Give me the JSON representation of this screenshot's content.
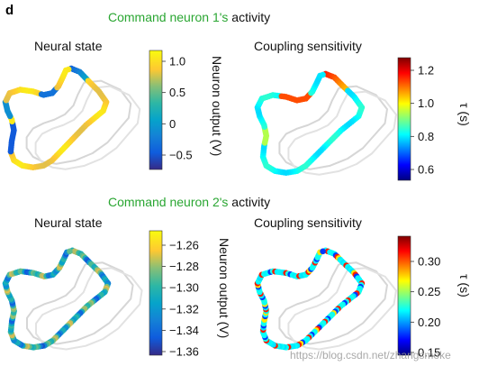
{
  "panel_letter": "d",
  "rows": [
    {
      "title_green": "Command neuron 1's",
      "title_black": " activity",
      "left_label": "Neural state",
      "right_label": "Coupling sensitivity",
      "neural_colorbar": {
        "label": "Neuron output (V)",
        "ticks": [
          "1.0",
          "0.5",
          "0",
          "−0.5"
        ]
      },
      "coupling_colorbar": {
        "label": "τ (s)",
        "ticks": [
          "1.2",
          "1.0",
          "0.8",
          "0.6"
        ]
      }
    },
    {
      "title_green": "Command neuron 2's",
      "title_black": " activity",
      "left_label": "Neural state",
      "right_label": "Coupling sensitivity",
      "neural_colorbar": {
        "label": "Neuron output (V)",
        "ticks": [
          "−1.26",
          "−1.28",
          "−1.30",
          "−1.32",
          "−1.34",
          "−1.36"
        ]
      },
      "coupling_colorbar": {
        "label": "τ (s)",
        "ticks": [
          "0.30",
          "0.25",
          "0.20",
          "0.15"
        ]
      }
    }
  ],
  "watermark": "https://blog.csdn.net/zhangsmoke",
  "colors": {
    "green": "#2aa632",
    "parula": [
      "#352a87",
      "#0f5cdd",
      "#1481d6",
      "#06a4ca",
      "#2eb7a4",
      "#87bf77",
      "#d1bb59",
      "#fec832",
      "#f9fb0e"
    ],
    "jet": [
      "#00007f",
      "#0000ff",
      "#007fff",
      "#00ffff",
      "#7fff7f",
      "#ffff00",
      "#ff7f00",
      "#ff0000",
      "#7f0000"
    ]
  }
}
